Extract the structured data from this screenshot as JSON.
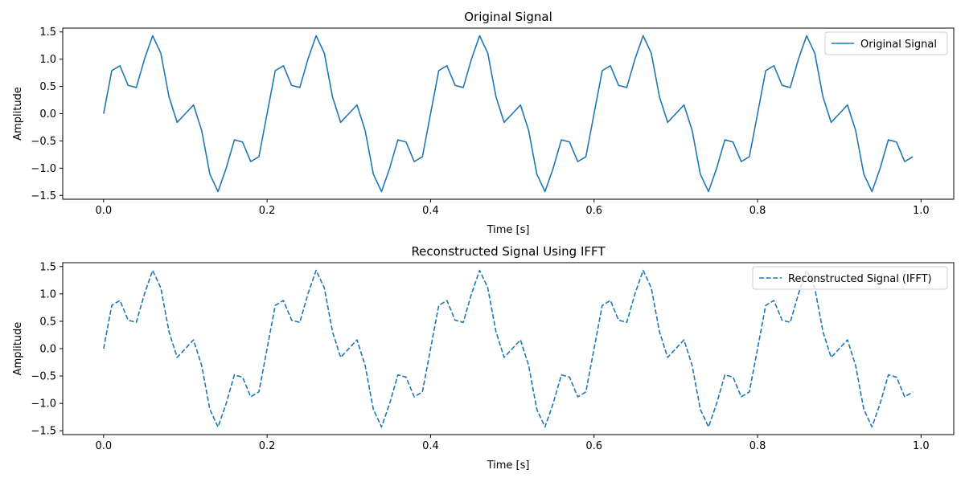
{
  "chart_data": [
    {
      "type": "line",
      "title": "Original Signal",
      "xlabel": "Time [s]",
      "ylabel": "Amplitude",
      "xlim": [
        -0.05,
        1.04
      ],
      "ylim": [
        -1.57,
        1.57
      ],
      "xticks": [
        0.0,
        0.2,
        0.4,
        0.6,
        0.8,
        1.0
      ],
      "xtick_labels": [
        "0.0",
        "0.2",
        "0.4",
        "0.6",
        "0.8",
        "1.0"
      ],
      "yticks": [
        1.5,
        1.0,
        0.5,
        0.0,
        -0.5,
        -1.0,
        -1.5
      ],
      "ytick_labels": [
        "1.5",
        "1.0",
        "0.5",
        "0.0",
        "−0.5",
        "−1.0",
        "−1.5"
      ],
      "grid": false,
      "legend": "top-right",
      "series": [
        {
          "name": "Original Signal",
          "color": "#1f77b4",
          "linestyle": "solid",
          "x": [
            0.0,
            0.01,
            0.02,
            0.03,
            0.04,
            0.05,
            0.06,
            0.07,
            0.08,
            0.09,
            0.1,
            0.11,
            0.12,
            0.13,
            0.14,
            0.15,
            0.16,
            0.17,
            0.18,
            0.19,
            0.2,
            0.21,
            0.22,
            0.23,
            0.24,
            0.25,
            0.26,
            0.27,
            0.28,
            0.29,
            0.3,
            0.31,
            0.32,
            0.33,
            0.34,
            0.35,
            0.36,
            0.37,
            0.38,
            0.39,
            0.4,
            0.41,
            0.42,
            0.43,
            0.44,
            0.45,
            0.46,
            0.47,
            0.48,
            0.49,
            0.5,
            0.51,
            0.52,
            0.53,
            0.54,
            0.55,
            0.56,
            0.57,
            0.58,
            0.59,
            0.6,
            0.61,
            0.62,
            0.63,
            0.64,
            0.65,
            0.66,
            0.67,
            0.68,
            0.69,
            0.7,
            0.71,
            0.72,
            0.73,
            0.74,
            0.75,
            0.76,
            0.77,
            0.78,
            0.79,
            0.8,
            0.81,
            0.82,
            0.83,
            0.84,
            0.85,
            0.86,
            0.87,
            0.88,
            0.89,
            0.9,
            0.91,
            0.92,
            0.93,
            0.94,
            0.95,
            0.96,
            0.97,
            0.98,
            0.99
          ],
          "y": [
            0.0,
            0.79,
            0.88,
            0.52,
            0.48,
            1.0,
            1.43,
            1.11,
            0.31,
            -0.16,
            0.0,
            0.16,
            -0.31,
            -1.11,
            -1.43,
            -1.0,
            -0.48,
            -0.52,
            -0.88,
            -0.79,
            0.0,
            0.79,
            0.88,
            0.52,
            0.48,
            1.0,
            1.43,
            1.11,
            0.31,
            -0.16,
            0.0,
            0.16,
            -0.31,
            -1.11,
            -1.43,
            -1.0,
            -0.48,
            -0.52,
            -0.88,
            -0.79,
            0.0,
            0.79,
            0.88,
            0.52,
            0.48,
            1.0,
            1.43,
            1.11,
            0.31,
            -0.16,
            0.0,
            0.16,
            -0.31,
            -1.11,
            -1.43,
            -1.0,
            -0.48,
            -0.52,
            -0.88,
            -0.79,
            0.0,
            0.79,
            0.88,
            0.52,
            0.48,
            1.0,
            1.43,
            1.11,
            0.31,
            -0.16,
            0.0,
            0.16,
            -0.31,
            -1.11,
            -1.43,
            -1.0,
            -0.48,
            -0.52,
            -0.88,
            -0.79,
            0.0,
            0.79,
            0.88,
            0.52,
            0.48,
            1.0,
            1.43,
            1.11,
            0.31,
            -0.16,
            0.0,
            0.16,
            -0.31,
            -1.11,
            -1.43,
            -1.0,
            -0.48,
            -0.52,
            -0.88,
            -0.79
          ]
        }
      ]
    },
    {
      "type": "line",
      "title": "Reconstructed Signal Using IFFT",
      "xlabel": "Time [s]",
      "ylabel": "Amplitude",
      "xlim": [
        -0.05,
        1.04
      ],
      "ylim": [
        -1.57,
        1.57
      ],
      "xticks": [
        0.0,
        0.2,
        0.4,
        0.6,
        0.8,
        1.0
      ],
      "xtick_labels": [
        "0.0",
        "0.2",
        "0.4",
        "0.6",
        "0.8",
        "1.0"
      ],
      "yticks": [
        1.5,
        1.0,
        0.5,
        0.0,
        -0.5,
        -1.0,
        -1.5
      ],
      "ytick_labels": [
        "1.5",
        "1.0",
        "0.5",
        "0.0",
        "−0.5",
        "−1.0",
        "−1.5"
      ],
      "grid": false,
      "legend": "top-right",
      "series": [
        {
          "name": "Reconstructed Signal (IFFT)",
          "color": "#1f77b4",
          "linestyle": "dashed",
          "x": [
            0.0,
            0.01,
            0.02,
            0.03,
            0.04,
            0.05,
            0.06,
            0.07,
            0.08,
            0.09,
            0.1,
            0.11,
            0.12,
            0.13,
            0.14,
            0.15,
            0.16,
            0.17,
            0.18,
            0.19,
            0.2,
            0.21,
            0.22,
            0.23,
            0.24,
            0.25,
            0.26,
            0.27,
            0.28,
            0.29,
            0.3,
            0.31,
            0.32,
            0.33,
            0.34,
            0.35,
            0.36,
            0.37,
            0.38,
            0.39,
            0.4,
            0.41,
            0.42,
            0.43,
            0.44,
            0.45,
            0.46,
            0.47,
            0.48,
            0.49,
            0.5,
            0.51,
            0.52,
            0.53,
            0.54,
            0.55,
            0.56,
            0.57,
            0.58,
            0.59,
            0.6,
            0.61,
            0.62,
            0.63,
            0.64,
            0.65,
            0.66,
            0.67,
            0.68,
            0.69,
            0.7,
            0.71,
            0.72,
            0.73,
            0.74,
            0.75,
            0.76,
            0.77,
            0.78,
            0.79,
            0.8,
            0.81,
            0.82,
            0.83,
            0.84,
            0.85,
            0.86,
            0.87,
            0.88,
            0.89,
            0.9,
            0.91,
            0.92,
            0.93,
            0.94,
            0.95,
            0.96,
            0.97,
            0.98,
            0.99
          ],
          "y": [
            0.0,
            0.79,
            0.88,
            0.52,
            0.48,
            1.0,
            1.43,
            1.11,
            0.31,
            -0.16,
            0.0,
            0.16,
            -0.31,
            -1.11,
            -1.43,
            -1.0,
            -0.48,
            -0.52,
            -0.88,
            -0.79,
            0.0,
            0.79,
            0.88,
            0.52,
            0.48,
            1.0,
            1.43,
            1.11,
            0.31,
            -0.16,
            0.0,
            0.16,
            -0.31,
            -1.11,
            -1.43,
            -1.0,
            -0.48,
            -0.52,
            -0.88,
            -0.79,
            0.0,
            0.79,
            0.88,
            0.52,
            0.48,
            1.0,
            1.43,
            1.11,
            0.31,
            -0.16,
            0.0,
            0.16,
            -0.31,
            -1.11,
            -1.43,
            -1.0,
            -0.48,
            -0.52,
            -0.88,
            -0.79,
            0.0,
            0.79,
            0.88,
            0.52,
            0.48,
            1.0,
            1.43,
            1.11,
            0.31,
            -0.16,
            0.0,
            0.16,
            -0.31,
            -1.11,
            -1.43,
            -1.0,
            -0.48,
            -0.52,
            -0.88,
            -0.79,
            0.0,
            0.79,
            0.88,
            0.52,
            0.48,
            1.0,
            1.43,
            1.11,
            0.31,
            -0.16,
            0.0,
            0.16,
            -0.31,
            -1.11,
            -1.43,
            -1.0,
            -0.48,
            -0.52,
            -0.88,
            -0.79
          ]
        }
      ]
    }
  ]
}
